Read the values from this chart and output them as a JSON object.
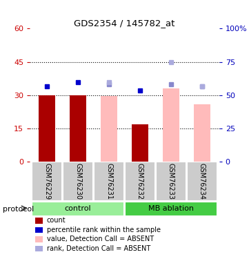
{
  "title": "GDS2354 / 145782_at",
  "samples": [
    "GSM76229",
    "GSM76230",
    "GSM76231",
    "GSM76232",
    "GSM76233",
    "GSM76234"
  ],
  "bar_values": [
    30,
    30,
    29.5,
    17,
    33,
    26
  ],
  "bar_colors": [
    "#aa0000",
    "#aa0000",
    "#ffbbbb",
    "#aa0000",
    "#ffbbbb",
    "#ffbbbb"
  ],
  "blue_dot_values": [
    34,
    36,
    35,
    32,
    35,
    34
  ],
  "blue_dot_colors": [
    "#0000cc",
    "#0000cc",
    "#8888cc",
    "#0000cc",
    "#8888cc",
    "#8888cc"
  ],
  "rank_dot_values": [
    null,
    null,
    36,
    null,
    45,
    34
  ],
  "rank_dot_color": "#aaaadd",
  "ylim_left": [
    0,
    60
  ],
  "ylim_right": [
    0,
    100
  ],
  "yticks_left": [
    0,
    15,
    30,
    45,
    60
  ],
  "yticks_right": [
    0,
    25,
    50,
    75,
    100
  ],
  "ytick_labels_left": [
    "0",
    "15",
    "30",
    "45",
    "60"
  ],
  "ytick_labels_right": [
    "0",
    "25",
    "50",
    "75",
    "100%"
  ],
  "left_axis_color": "#cc0000",
  "right_axis_color": "#0000bb",
  "control_color": "#99ee99",
  "mb_color": "#44cc44",
  "sample_box_color": "#cccccc",
  "legend_items": [
    {
      "label": "count",
      "color": "#aa0000"
    },
    {
      "label": "percentile rank within the sample",
      "color": "#0000cc"
    },
    {
      "label": "value, Detection Call = ABSENT",
      "color": "#ffbbbb"
    },
    {
      "label": "rank, Detection Call = ABSENT",
      "color": "#aaaadd"
    }
  ]
}
